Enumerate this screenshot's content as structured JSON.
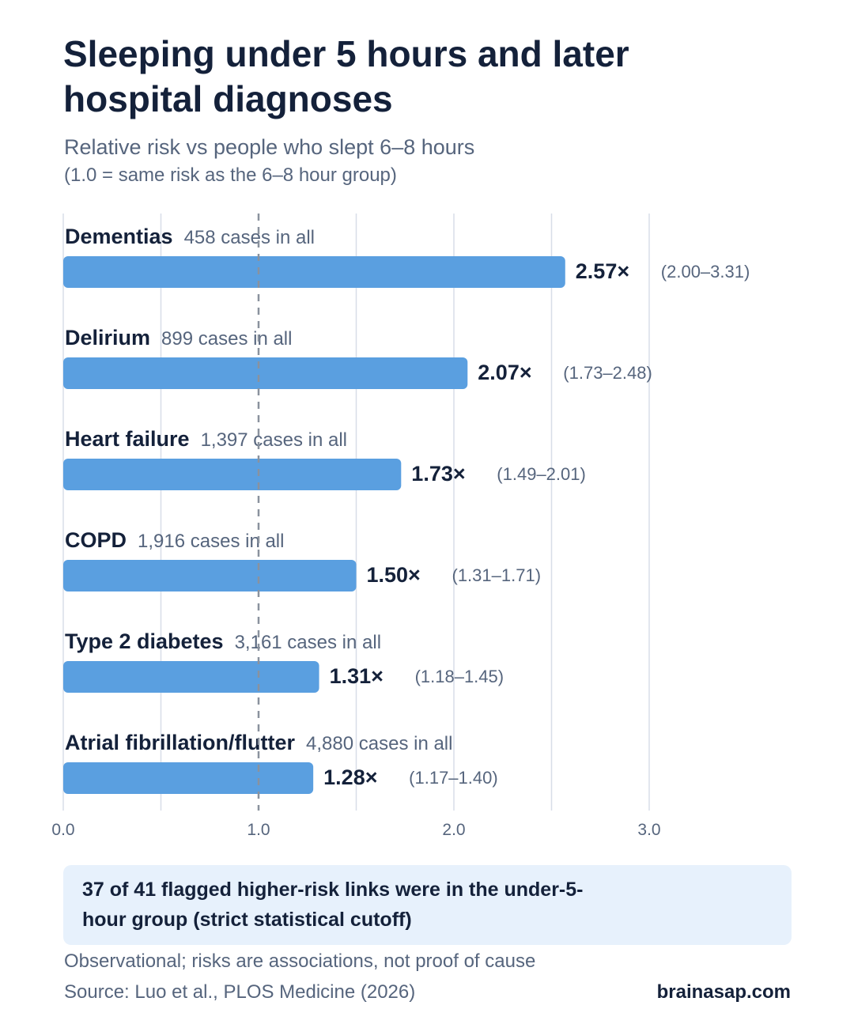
{
  "header": {
    "title": "Sleeping under 5 hours and later hospital diagnoses",
    "subtitle": "Relative risk vs people who slept 6–8 hours",
    "note": "(1.0 = same risk as the 6–8 hour group)"
  },
  "chart_data": {
    "type": "bar",
    "orientation": "horizontal",
    "categories": [
      "Dementias",
      "Delirium",
      "Heart failure",
      "COPD",
      "Type 2 diabetes",
      "Atrial fibrillation/flutter"
    ],
    "case_labels": [
      "458 cases in all",
      "899 cases in all",
      "1,397 cases in all",
      "1,916 cases in all",
      "3,161 cases in all",
      "4,880 cases in all"
    ],
    "values": [
      2.57,
      2.07,
      1.73,
      1.5,
      1.31,
      1.28
    ],
    "value_labels": [
      "2.57×",
      "2.07×",
      "1.73×",
      "1.50×",
      "1.31×",
      "1.28×"
    ],
    "ci_labels": [
      "(2.00–3.31)",
      "(1.73–2.48)",
      "(1.49–2.01)",
      "(1.31–1.71)",
      "(1.18–1.45)",
      "(1.17–1.40)"
    ],
    "x_ticks": [
      "0.0",
      "1.0",
      "2.0",
      "3.0"
    ],
    "x_tick_values": [
      0,
      1,
      2,
      3
    ],
    "xlim": [
      0,
      3
    ],
    "reference_line": 1.0,
    "grid": true,
    "colors": {
      "bar": "#5a9fe0",
      "grid": "#d8dee8",
      "reference": "#8a929e",
      "label": "#14213a",
      "muted": "#56657d"
    }
  },
  "callout": {
    "text": "37 of 41 flagged higher-risk links were in the under-5-hour group (strict statistical cutoff)"
  },
  "footer": {
    "note": "Observational; risks are associations, not proof of cause",
    "source": "Source: Luo et al., PLOS Medicine (2026)",
    "brand": "brainasap.com"
  }
}
